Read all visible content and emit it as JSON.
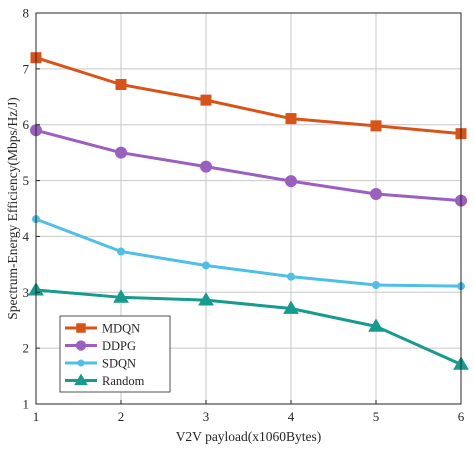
{
  "chart_data": {
    "type": "line",
    "title": "",
    "xlabel": "V2V payload(x1060Bytes)",
    "ylabel": "Spectrum-Energy Efficiency(Mbps/Hz/J)",
    "x": [
      1,
      2,
      3,
      4,
      5,
      6
    ],
    "xlim": [
      1,
      6
    ],
    "ylim": [
      1,
      8
    ],
    "xticks": [
      "1",
      "2",
      "3",
      "4",
      "5",
      "6"
    ],
    "yticks": [
      "1",
      "2",
      "3",
      "4",
      "5",
      "6",
      "7",
      "8"
    ],
    "grid": true,
    "legend_position": "bottom-left",
    "series": [
      {
        "name": "MDQN",
        "color": "#d95319",
        "marker": "square",
        "values": [
          7.2,
          6.72,
          6.44,
          6.11,
          5.98,
          5.84
        ]
      },
      {
        "name": "DDPG",
        "color": "#9b5fc0",
        "marker": "circle",
        "values": [
          5.9,
          5.5,
          5.25,
          4.99,
          4.76,
          4.64
        ]
      },
      {
        "name": "SDQN",
        "color": "#4fbfe8",
        "marker": "dot",
        "values": [
          4.31,
          3.73,
          3.48,
          3.28,
          3.13,
          3.11
        ]
      },
      {
        "name": "Random",
        "color": "#169b8f",
        "marker": "triangle",
        "values": [
          3.04,
          2.91,
          2.86,
          2.71,
          2.39,
          1.71
        ]
      }
    ]
  }
}
